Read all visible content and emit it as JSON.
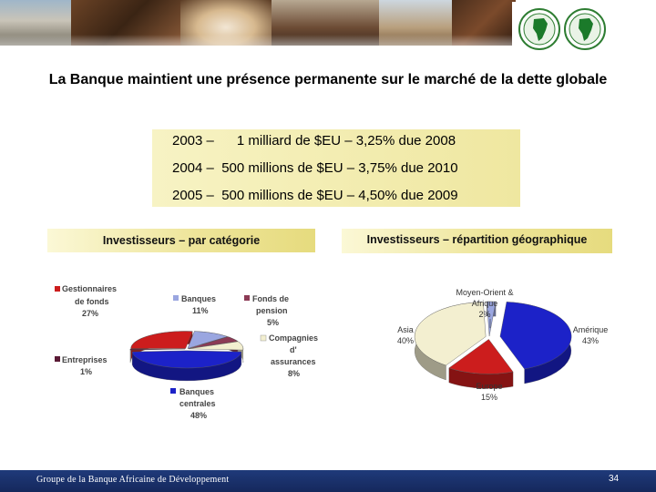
{
  "slide": {
    "title": "La Banque maintient une présence permanente sur le marché de la dette globale",
    "issues": [
      "2003 –      1 milliard de $EU – 3,25% due 2008",
      "2004 –  500 millions de $EU – 3,75% due 2010",
      "2005 –  500 millions de $EU – 4,50% due 2009"
    ],
    "left_header": "Investisseurs –  par catégorie",
    "right_header": "Investisseurs – répartition géographique"
  },
  "chart_data": [
    {
      "type": "pie",
      "title": "Investisseurs –  par catégorie",
      "slices": [
        {
          "label": "Gestionnaires de fonds",
          "value": 27,
          "label_text": "27%",
          "color": "#cc1d1d"
        },
        {
          "label": "Banques",
          "value": 11,
          "label_text": "11%",
          "color": "#9aa6e0"
        },
        {
          "label": "Fonds de pension",
          "value": 5,
          "label_text": "5%",
          "color": "#8c3a55"
        },
        {
          "label": "Compagnies d' assurances",
          "value": 8,
          "label_text": "8%",
          "color": "#f3efd0"
        },
        {
          "label": "Banques centrales",
          "value": 48,
          "label_text": "48%",
          "color": "#1c22c8"
        },
        {
          "label": "Entreprises",
          "value": 1,
          "label_text": "1%",
          "color": "#5a1a35"
        }
      ]
    },
    {
      "type": "pie",
      "title": "Investisseurs – répartition géographique",
      "slices": [
        {
          "label": "Moyen-Orient & Afrique",
          "value": 2,
          "label_text": "2%",
          "color": "#9aa6e0"
        },
        {
          "label": "Amérique",
          "value": 43,
          "label_text": "43%",
          "color": "#1c22c8"
        },
        {
          "label": "Europe",
          "value": 15,
          "label_text": "15%",
          "color": "#cc1d1d"
        },
        {
          "label": "Asia",
          "value": 40,
          "label_text": "40%",
          "color": "#f3efd0"
        }
      ]
    }
  ],
  "legend_left": {
    "gest_1": "Gestionnaires",
    "gest_2": "de fonds",
    "gest_pct": "27%",
    "banques": "Banques",
    "banques_pct": "11%",
    "fonds_1": "Fonds de",
    "fonds_2": "pension",
    "fonds_pct": "5%",
    "comp_1": "Compagnies",
    "comp_2": "d'",
    "comp_3": "assurances",
    "comp_pct": "8%",
    "entr": "Entreprises",
    "entr_pct": "1%",
    "bc_1": "Banques",
    "bc_2": "centrales",
    "bc_pct": "48%"
  },
  "legend_right": {
    "mo_1": "Moyen-Orient &",
    "mo_2": "Afrique",
    "mo_pct": "2%",
    "asia": "Asia",
    "asia_pct": "40%",
    "am": "Amérique",
    "am_pct": "43%",
    "eu": "Europe",
    "eu_pct": "15%"
  },
  "footer": {
    "org": "Groupe de la Banque Africaine de Développement",
    "page": "34"
  },
  "colors": {
    "footer_bg": "#1f3a7a",
    "gold_box": "#efe7a0"
  }
}
